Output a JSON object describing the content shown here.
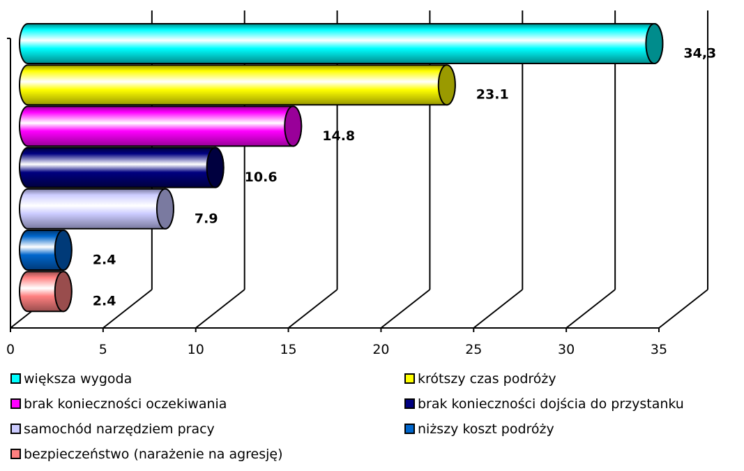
{
  "chart_data": {
    "type": "bar",
    "orientation": "horizontal",
    "style": "3d-cylinder",
    "title": "",
    "xlabel": "",
    "ylabel": "",
    "xlim": [
      0,
      35
    ],
    "x_ticks": [
      0,
      5,
      10,
      15,
      20,
      25,
      30,
      35
    ],
    "grid": true,
    "legend_position": "bottom",
    "series": [
      {
        "name": "większa wygoda",
        "value": 34.3,
        "label": "34,3",
        "color": "#00FFFF",
        "dark": "#008C8C"
      },
      {
        "name": "krótszy czas podróży",
        "value": 23.1,
        "label": "23.1",
        "color": "#FFFF00",
        "dark": "#9A9A00"
      },
      {
        "name": "brak konieczności oczekiwania",
        "value": 14.8,
        "label": "14.8",
        "color": "#FF00FF",
        "dark": "#990099"
      },
      {
        "name": "brak konieczności dojścia do przystanku",
        "value": 10.6,
        "label": "10.6",
        "color": "#000080",
        "dark": "#00003F"
      },
      {
        "name": "samochód narzędziem pracy",
        "value": 7.9,
        "label": "7.9",
        "color": "#CCCCFF",
        "dark": "#7A7AA0"
      },
      {
        "name": "niższy koszt podróży",
        "value": 2.4,
        "label": "2.4",
        "color": "#0066CC",
        "dark": "#003A78"
      },
      {
        "name": "bezpieczeństwo (narażenie na agresję)",
        "value": 2.4,
        "label": "2.4",
        "color": "#FF8080",
        "dark": "#994D4D"
      }
    ]
  }
}
